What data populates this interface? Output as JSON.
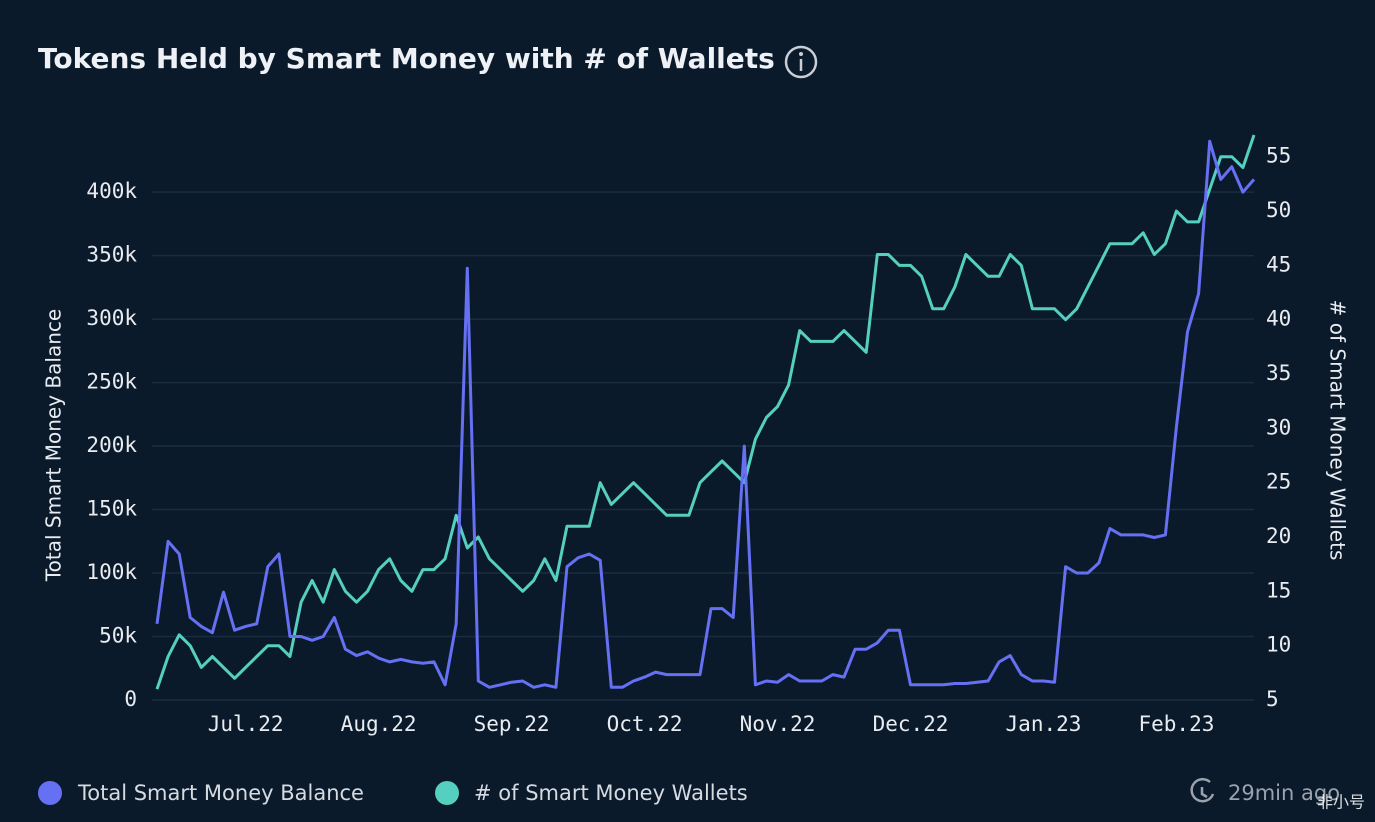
{
  "chart_data": {
    "type": "line",
    "title": "Tokens Held by Smart Money with # of Wallets",
    "y_label": "Total Smart Money Balance",
    "y2_label": "# of Smart Money Wallets",
    "updated": "29min ago",
    "watermark": "非小号",
    "categories": [
      null,
      null,
      null,
      null,
      null,
      null,
      null,
      null,
      "Jul.22",
      null,
      null,
      null,
      null,
      null,
      null,
      null,
      null,
      null,
      null,
      null,
      "Aug.22",
      null,
      null,
      null,
      null,
      null,
      null,
      null,
      null,
      null,
      null,
      null,
      "Sep.22",
      null,
      null,
      null,
      null,
      null,
      null,
      null,
      null,
      null,
      null,
      null,
      "Oct.22",
      null,
      null,
      null,
      null,
      null,
      null,
      null,
      null,
      null,
      null,
      null,
      "Nov.22",
      null,
      null,
      null,
      null,
      null,
      null,
      null,
      null,
      null,
      null,
      null,
      "Dec.22",
      null,
      null,
      null,
      null,
      null,
      null,
      null,
      null,
      null,
      null,
      null,
      "Jan.23",
      null,
      null,
      null,
      null,
      null,
      null,
      null,
      null,
      null,
      null,
      null,
      "Feb.23",
      null,
      null,
      null,
      null,
      null,
      null,
      null
    ],
    "series": [
      {
        "name": "Total Smart Money Balance",
        "color": "#6670f2",
        "axis": "y",
        "values": [
          60000,
          125000,
          115000,
          65000,
          58000,
          53000,
          85000,
          55000,
          58000,
          60000,
          105000,
          115000,
          50000,
          50000,
          47000,
          50000,
          65000,
          40000,
          35000,
          38000,
          33000,
          30000,
          32000,
          30000,
          29000,
          30000,
          12000,
          60000,
          340000,
          15000,
          10000,
          12000,
          14000,
          15000,
          10000,
          12000,
          10000,
          105000,
          112000,
          115000,
          110000,
          10000,
          10000,
          15000,
          18000,
          22000,
          20000,
          20000,
          20000,
          20000,
          72000,
          72000,
          65000,
          200000,
          12000,
          15000,
          14000,
          20000,
          15000,
          15000,
          15000,
          20000,
          18000,
          40000,
          40000,
          45000,
          55000,
          55000,
          12000,
          12000,
          12000,
          12000,
          13000,
          13000,
          14000,
          15000,
          30000,
          35000,
          20000,
          15000,
          15000,
          14000,
          105000,
          100000,
          100000,
          108000,
          135000,
          130000,
          130000,
          130000,
          128000,
          130000,
          215000,
          290000,
          320000,
          440000,
          410000,
          420000,
          400000,
          410000
        ]
      },
      {
        "name": "# of Smart Money Wallets",
        "color": "#55cfc0",
        "axis": "y2",
        "values": [
          6,
          9,
          11,
          10,
          8,
          9,
          8,
          7,
          8,
          9,
          10,
          10,
          9,
          14,
          16,
          14,
          17,
          15,
          14,
          15,
          17,
          18,
          16,
          15,
          17,
          17,
          18,
          22,
          19,
          20,
          18,
          17,
          16,
          15,
          16,
          18,
          16,
          21,
          21,
          21,
          25,
          23,
          24,
          25,
          24,
          23,
          22,
          22,
          22,
          25,
          26,
          27,
          26,
          25,
          29,
          31,
          32,
          34,
          39,
          38,
          38,
          38,
          39,
          38,
          37,
          46,
          46,
          45,
          45,
          44,
          41,
          41,
          43,
          46,
          45,
          44,
          44,
          46,
          45,
          41,
          41,
          41,
          40,
          41,
          43,
          45,
          47,
          47,
          47,
          48,
          46,
          47,
          50,
          49,
          49,
          52,
          55,
          55,
          54,
          57
        ]
      }
    ],
    "ylim": [
      0,
      445000
    ],
    "yticks": [
      0,
      {
        "value": 50000,
        "label": "50k"
      },
      {
        "value": 100000,
        "label": "100k"
      },
      {
        "value": 150000,
        "label": "150k"
      },
      {
        "value": 200000,
        "label": "200k"
      },
      {
        "value": 250000,
        "label": "250k"
      },
      {
        "value": 300000,
        "label": "300k"
      },
      {
        "value": 350000,
        "label": "350k"
      },
      {
        "value": 400000,
        "label": "400k"
      }
    ],
    "y2lim": [
      5,
      57
    ],
    "y2ticks": [
      5,
      10,
      15,
      20,
      25,
      30,
      35,
      40,
      45,
      50,
      55
    ],
    "grid": true
  }
}
